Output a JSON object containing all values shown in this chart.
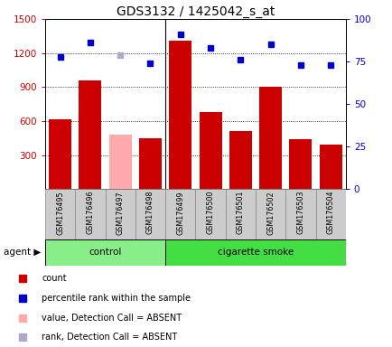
{
  "title": "GDS3132 / 1425042_s_at",
  "samples": [
    "GSM176495",
    "GSM176496",
    "GSM176497",
    "GSM176498",
    "GSM176499",
    "GSM176500",
    "GSM176501",
    "GSM176502",
    "GSM176503",
    "GSM176504"
  ],
  "bar_values": [
    620,
    960,
    480,
    450,
    1310,
    680,
    510,
    900,
    440,
    390
  ],
  "bar_absent": [
    false,
    false,
    true,
    false,
    false,
    false,
    false,
    false,
    false,
    false
  ],
  "percentile_values": [
    78,
    86,
    79,
    74,
    91,
    83,
    76,
    85,
    73,
    73
  ],
  "percentile_absent": [
    false,
    false,
    true,
    false,
    false,
    false,
    false,
    false,
    false,
    false
  ],
  "n_control": 4,
  "n_smoke": 6,
  "ylim_left": [
    0,
    1500
  ],
  "ylim_right": [
    0,
    100
  ],
  "yticks_left": [
    300,
    600,
    900,
    1200,
    1500
  ],
  "yticks_right": [
    0,
    25,
    50,
    75,
    100
  ],
  "grid_lines": [
    300,
    600,
    900,
    1200
  ],
  "bar_color_normal": "#cc0000",
  "bar_color_absent": "#ffaaaa",
  "dot_color_normal": "#0000cc",
  "dot_color_absent": "#aaaacc",
  "label_bg": "#cccccc",
  "control_bg": "#88ee88",
  "smoke_bg": "#44dd44",
  "agent_label": "agent",
  "control_label": "control",
  "smoke_label": "cigarette smoke",
  "legend_count": "count",
  "legend_percentile": "percentile rank within the sample",
  "legend_absent_value": "value, Detection Call = ABSENT",
  "legend_absent_rank": "rank, Detection Call = ABSENT"
}
